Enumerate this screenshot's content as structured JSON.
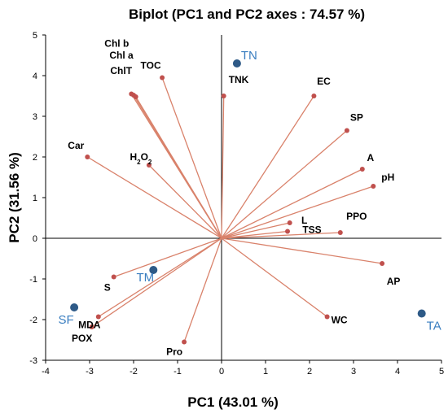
{
  "chart_data": {
    "type": "scatter",
    "title": "Biplot (PC1 and PC2 axes : 74.57 %)",
    "xlabel": "PC1 (43.01 %)",
    "ylabel": "PC2 (31.56 %)",
    "xlim": [
      -4,
      5
    ],
    "ylim": [
      -3,
      5
    ],
    "xticks": [
      "-4",
      "-3",
      "-2",
      "-1",
      "0",
      "1",
      "2",
      "3",
      "4",
      "5"
    ],
    "yticks": [
      "-3",
      "-2",
      "-1",
      "0",
      "1",
      "2",
      "3",
      "4",
      "5"
    ],
    "grid": false,
    "variables": [
      {
        "label": "TOC",
        "x": -1.35,
        "y": 3.95
      },
      {
        "label": "Chl b",
        "x": -2.05,
        "y": 3.55
      },
      {
        "label": "Chl a",
        "x": -2.0,
        "y": 3.52
      },
      {
        "label": "ChlT",
        "x": -1.95,
        "y": 3.48
      },
      {
        "label": "TNK",
        "x": 0.05,
        "y": 3.5
      },
      {
        "label": "EC",
        "x": 2.1,
        "y": 3.5
      },
      {
        "label": "SP",
        "x": 2.85,
        "y": 2.65
      },
      {
        "label": "Car",
        "x": -3.05,
        "y": 2.0
      },
      {
        "label": "H2O2",
        "x": -1.65,
        "y": 1.8
      },
      {
        "label": "A",
        "x": 3.2,
        "y": 1.7
      },
      {
        "label": "pH",
        "x": 3.45,
        "y": 1.28
      },
      {
        "label": "L",
        "x": 1.55,
        "y": 0.38
      },
      {
        "label": "TSS",
        "x": 1.5,
        "y": 0.17
      },
      {
        "label": "PPO",
        "x": 2.7,
        "y": 0.14
      },
      {
        "label": "AP",
        "x": 3.65,
        "y": -0.62
      },
      {
        "label": "S",
        "x": -2.45,
        "y": -0.95
      },
      {
        "label": "MDA",
        "x": -2.8,
        "y": -1.93
      },
      {
        "label": "POX",
        "x": -2.95,
        "y": -2.18
      },
      {
        "label": "Pro",
        "x": -0.85,
        "y": -2.55
      },
      {
        "label": "WC",
        "x": 2.4,
        "y": -1.93
      }
    ],
    "observations": [
      {
        "label": "TN",
        "x": 0.35,
        "y": 4.3
      },
      {
        "label": "TM",
        "x": -1.55,
        "y": -0.78
      },
      {
        "label": "SF",
        "x": -3.35,
        "y": -1.7
      },
      {
        "label": "TA",
        "x": 4.55,
        "y": -1.85
      }
    ],
    "colors": {
      "vector": "#d9826b",
      "vector_point": "#c0504d",
      "observation": "#2e5a87",
      "observation_label": "#3a7ec0"
    }
  }
}
